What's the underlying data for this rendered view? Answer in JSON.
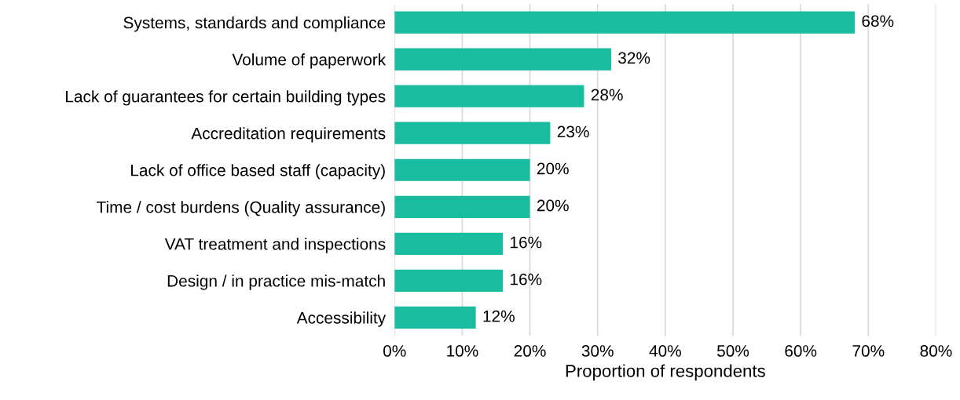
{
  "chart_data": {
    "type": "bar",
    "orientation": "horizontal",
    "xlabel": "Proportion of respondents",
    "categories": [
      "Systems, standards and compliance",
      "Volume of paperwork",
      "Lack of guarantees for certain building types",
      "Accreditation requirements",
      "Lack of office based staff (capacity)",
      "Time / cost burdens (Quality assurance)",
      "VAT treatment and inspections",
      "Design / in practice mis-match",
      "Accessibility"
    ],
    "values": [
      68,
      32,
      28,
      23,
      20,
      20,
      16,
      16,
      12
    ],
    "value_labels": [
      "68%",
      "32%",
      "28%",
      "23%",
      "20%",
      "20%",
      "16%",
      "16%",
      "12%"
    ],
    "color": "#1abc9f",
    "xlim": [
      0,
      80
    ],
    "xticks": [
      {
        "value": 0,
        "label": "0%"
      },
      {
        "value": 10,
        "label": "10%"
      },
      {
        "value": 20,
        "label": "20%"
      },
      {
        "value": 30,
        "label": "30%"
      },
      {
        "value": 40,
        "label": "40%"
      },
      {
        "value": 50,
        "label": "50%"
      },
      {
        "value": 60,
        "label": "60%"
      },
      {
        "value": 70,
        "label": "70%"
      },
      {
        "value": 80,
        "label": "80%"
      }
    ],
    "grid": "x",
    "legend": false
  }
}
